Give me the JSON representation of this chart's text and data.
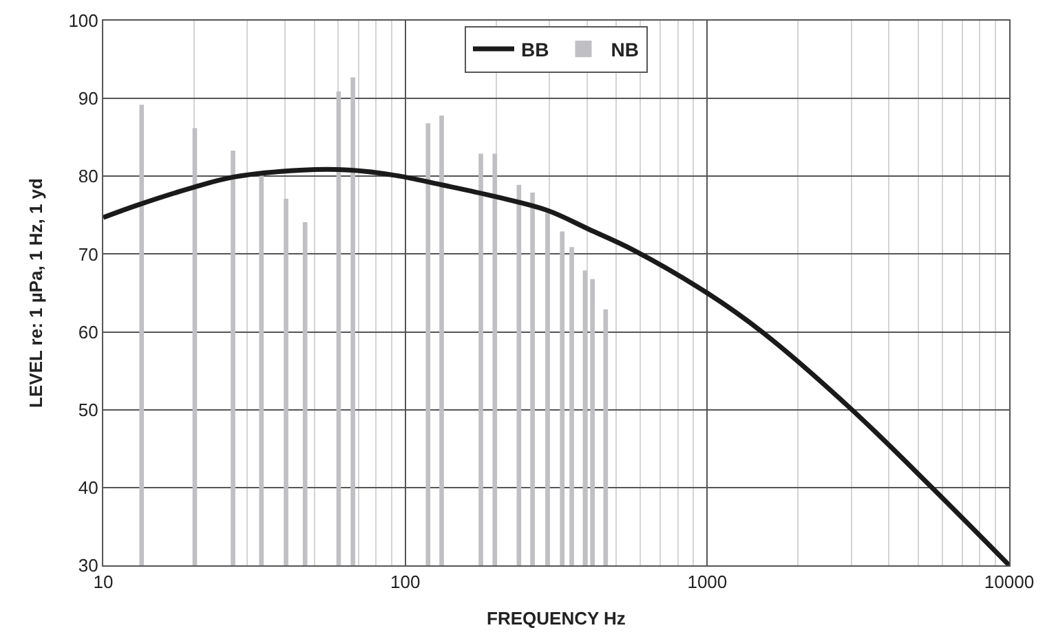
{
  "chart_data": {
    "type": "line",
    "xlabel": "FREQUENCY Hz",
    "ylabel": "LEVEL re: 1 µPa, 1 Hz, 1 yd",
    "log": "x",
    "xlim": [
      10,
      10000
    ],
    "xticks": [
      10,
      100,
      1000,
      10000
    ],
    "ylim": [
      30,
      100
    ],
    "yticks": [
      30,
      40,
      50,
      60,
      70,
      80,
      90,
      100
    ],
    "grid": true,
    "legend": "top",
    "series": [
      {
        "name": "BB",
        "color": "#1a1a1a",
        "x": [
          10,
          13,
          20,
          27,
          46,
          65,
          93,
          132,
          198,
          296,
          405,
          571,
          1000,
          1531,
          2976,
          5580,
          10000
        ],
        "values": [
          74.7,
          76.3,
          78.6,
          79.9,
          80.8,
          80.8,
          80.1,
          78.9,
          77.4,
          75.6,
          73.2,
          70.5,
          65,
          59.9,
          50.2,
          39.9,
          30
        ]
      },
      {
        "name": "NB",
        "type": "bar",
        "color": "#c0c0c4",
        "x": [
          13.4,
          20.1,
          26.9,
          33.4,
          40.3,
          46.6,
          60.2,
          67.1,
          119,
          132,
          178,
          198,
          238,
          264,
          296,
          331,
          356,
          394,
          417,
          461
        ],
        "values": [
          89.2,
          86.2,
          83.3,
          80.1,
          77.1,
          74.1,
          90.9,
          92.7,
          86.8,
          87.8,
          82.9,
          82.9,
          78.9,
          77.9,
          75.3,
          72.9,
          70.9,
          67.9,
          66.8,
          62.9
        ]
      }
    ]
  }
}
